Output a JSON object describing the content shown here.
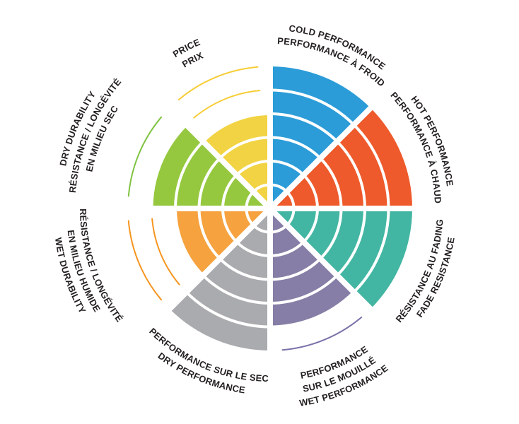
{
  "chart_data": {
    "type": "radial-segment-wheel",
    "title": "",
    "max_rings": 6,
    "start_angle_deg": 0,
    "segment_sweep_deg": 45,
    "segment_order": "clockwise-from-top",
    "unfilled_rings_shown_as_thin_arcs": true,
    "background": "#FFFFFF",
    "text_color": "#231F20",
    "ring_separator_color": "#FFFFFF",
    "segments": [
      {
        "id": "cold-performance",
        "label_lines": [
          "COLD PERFORMANCE",
          "PERFORMANCE À FROID"
        ],
        "value": 6,
        "color": "#2B9CD8",
        "arc_color": "#2B9CD8"
      },
      {
        "id": "hot-performance",
        "label_lines": [
          "HOT PERFORMANCE",
          "PERFORMANCE À CHAUD"
        ],
        "value": 6,
        "color": "#EE5A2B",
        "arc_color": "#EE5A2B"
      },
      {
        "id": "fade-resistance",
        "label_lines": [
          "RÉSISTANCE AU FADING",
          "FADE RESISTANCE"
        ],
        "value": 6,
        "color": "#42B6A2",
        "arc_color": "#42B6A2"
      },
      {
        "id": "wet-performance",
        "label_lines": [
          "PERFORMANCE",
          "SUR LE MOUILLÉ",
          "WET PERFORMANCE"
        ],
        "value": 5,
        "color": "#867EA6",
        "arc_color": "#7B72A9"
      },
      {
        "id": "dry-performance",
        "label_lines": [
          "PERFORMANCE SUR LE SEC",
          "DRY PERFORMANCE"
        ],
        "value": 6,
        "color": "#A9ABAE",
        "arc_color": "#A9ABAE"
      },
      {
        "id": "wet-durability",
        "label_lines": [
          "RÉSISTANCE / LONGÉVITÉ",
          "EN MILIEU HUMIDE",
          "WET DURABILITY"
        ],
        "value": 4,
        "color": "#F5A23F",
        "arc_color": "#F6951F"
      },
      {
        "id": "dry-durability",
        "label_lines": [
          "DRY DURABILITY",
          "RÉSISTANCE / LONGÉVITÉ",
          "EN MILIEU SEC"
        ],
        "value": 5,
        "color": "#95C83F",
        "arc_color": "#80C342"
      },
      {
        "id": "price",
        "label_lines": [
          "PRICE",
          "PRIX"
        ],
        "value": 4,
        "color": "#F2D343",
        "arc_color": "#F7CD36"
      }
    ]
  }
}
